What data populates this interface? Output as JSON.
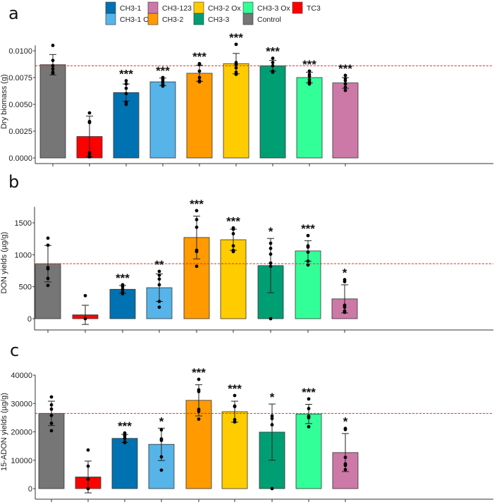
{
  "chart_data": {
    "type": "bar",
    "categories": [
      "Control",
      "TC3",
      "CH3-1",
      "CH3-1 Ox",
      "CH3-2",
      "CH3-2 Ox",
      "CH3-3",
      "CH3-3 Ox",
      "CH3-123"
    ],
    "colors": {
      "Control": "#767676",
      "TC3": "#ff0000",
      "CH3-1": "#0072b2",
      "CH3-1 Ox": "#56b4e9",
      "CH3-2": "#ff9a00",
      "CH3-2 Ox": "#ffcc00",
      "CH3-3": "#009e73",
      "CH3-3 Ox": "#33ff99",
      "CH3-123": "#cc79a7"
    },
    "legend": {
      "placement": "top-center",
      "rows": [
        [
          "CH3-1",
          "CH3-123",
          "CH3-2 Ox",
          "CH3-3 Ox",
          "TC3"
        ],
        [
          "CH3-1 Ox",
          "CH3-2",
          "CH3-3",
          "Control"
        ]
      ]
    },
    "reference_line_color": "#ff2020",
    "panels": [
      {
        "label": "a",
        "ylabel": "Dry biomass (g)",
        "ylim": [
          0,
          0.0105
        ],
        "yticks": [
          0,
          0.0025,
          0.005,
          0.0075,
          0.01
        ],
        "ytick_labels": [
          "0.0000",
          "0.0025",
          "0.0050",
          "0.0075",
          "0.0100"
        ],
        "reference_line": 0.0086,
        "means": [
          0.0087,
          0.002,
          0.0061,
          0.0071,
          0.0079,
          0.0088,
          0.0086,
          0.0075,
          0.007
        ],
        "sd": [
          0.00095,
          0.0019,
          0.0008,
          0.00035,
          0.00075,
          0.00095,
          0.0005,
          0.0005,
          0.0005
        ],
        "significance": [
          "",
          "",
          "***",
          "***",
          "***",
          "***",
          "***",
          "***",
          "***"
        ],
        "points": [
          [
            0.0105,
            0.0091,
            0.0086,
            0.0083,
            0.008,
            0.0079
          ],
          [
            0.0042,
            0.0034,
            0.0033,
            0.0005,
            0.0003,
            0.0001
          ],
          [
            0.0072,
            0.0069,
            0.0065,
            0.006,
            0.0052,
            0.005
          ],
          [
            0.0075,
            0.0073,
            0.0071,
            0.0069,
            0.0068,
            0.0067
          ],
          [
            0.0088,
            0.0087,
            0.0081,
            0.0075,
            0.0072,
            0.0071
          ],
          [
            0.0106,
            0.0089,
            0.0087,
            0.0084,
            0.008,
            0.0078
          ],
          [
            0.0093,
            0.0089,
            0.0086,
            0.0081,
            0.008
          ],
          [
            0.0081,
            0.0078,
            0.0076,
            0.0073,
            0.0071,
            0.0069
          ],
          [
            0.0077,
            0.0074,
            0.0072,
            0.0069,
            0.0066,
            0.0063
          ]
        ]
      },
      {
        "label": "b",
        "ylabel": "DON yields (µg/g)",
        "ylim": [
          0,
          1750
        ],
        "yticks": [
          0,
          500,
          1000,
          1500
        ],
        "ytick_labels": [
          "0",
          "500",
          "1000",
          "1500"
        ],
        "reference_line": 860,
        "means": [
          860,
          60,
          460,
          485,
          1270,
          1235,
          830,
          1060,
          310
        ],
        "sd": [
          285,
          150,
          60,
          215,
          335,
          165,
          425,
          160,
          220
        ],
        "significance": [
          "",
          "",
          "***",
          "**",
          "***",
          "***",
          "*",
          "***",
          "*"
        ],
        "points": [
          [
            1260,
            1150,
            800,
            780,
            630,
            520
          ],
          [
            360,
            0
          ],
          [
            530,
            500,
            460,
            420,
            400,
            390
          ],
          [
            740,
            680,
            620,
            530,
            270,
            180
          ],
          [
            1690,
            1550,
            1430,
            1070,
            1050,
            820
          ],
          [
            1420,
            1400,
            1330,
            1140,
            1070,
            1050
          ],
          [
            1180,
            1100,
            1010,
            870,
            820,
            0
          ],
          [
            1300,
            1140,
            1120,
            1040,
            900,
            840
          ],
          [
            610,
            580,
            210,
            180,
            120,
            100
          ]
        ]
      },
      {
        "label": "c",
        "ylabel": "15-ADON yields (µg/g)",
        "ylim": [
          0,
          40000
        ],
        "yticks": [
          0,
          10000,
          20000,
          30000,
          40000
        ],
        "ytick_labels": [
          "0",
          "10000",
          "20000",
          "30000",
          "40000"
        ],
        "reference_line": 26500,
        "means": [
          26500,
          4100,
          17700,
          15600,
          31100,
          27100,
          19900,
          26300,
          12700
        ],
        "sd": [
          4300,
          5600,
          1400,
          5700,
          5500,
          3700,
          9900,
          3400,
          6700
        ],
        "significance": [
          "",
          "",
          "***",
          "*",
          "***",
          "***",
          "*",
          "***",
          "*"
        ],
        "points": [
          [
            32300,
            29500,
            28000,
            25800,
            23000,
            20400
          ],
          [
            13600,
            7900,
            3300,
            0
          ],
          [
            19600,
            19000,
            18600,
            17700,
            16500,
            16200
          ],
          [
            20700,
            17500,
            17000,
            11200,
            6500
          ],
          [
            38500,
            34800,
            34200,
            27900,
            27200,
            24500
          ],
          [
            32800,
            29100,
            28900,
            24300,
            23500
          ],
          [
            25600,
            24700,
            22500,
            0
          ],
          [
            31600,
            28200,
            25500,
            25000,
            21800
          ],
          [
            21200,
            20800,
            11000,
            8700,
            8200,
            6700
          ]
        ]
      }
    ]
  }
}
